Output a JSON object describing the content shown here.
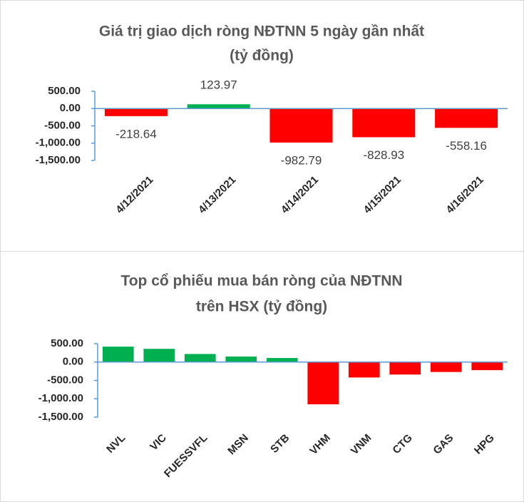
{
  "chart_data": [
    {
      "type": "bar",
      "title": [
        "Giá trị giao dịch ròng NĐTNN 5 ngày gần nhất",
        "(tỷ đồng)"
      ],
      "categories": [
        "4/12/2021",
        "4/13/2021",
        "4/14/2021",
        "4/15/2021",
        "4/16/2021"
      ],
      "values": [
        -218.64,
        123.97,
        -982.79,
        -828.93,
        -558.16
      ],
      "colors": [
        "#ff0000",
        "#00b050",
        "#ff0000",
        "#ff0000",
        "#ff0000"
      ],
      "data_labels": true,
      "ylim": [
        -1500,
        500
      ],
      "yticks": [
        {
          "value": 500,
          "label": "500.00"
        },
        {
          "value": 0,
          "label": "0.00"
        },
        {
          "value": -500,
          "label": "-500.00"
        },
        {
          "value": -1000,
          "label": "-1,000.00"
        },
        {
          "value": -1500,
          "label": "-1,500.00"
        }
      ]
    },
    {
      "type": "bar",
      "title": [
        "Top cổ phiếu mua bán ròng của NĐTNN",
        "trên HSX (tỷ đồng)"
      ],
      "categories": [
        "NVL",
        "VIC",
        "FUESSVFL",
        "MSN",
        "STB",
        "VHM",
        "VNM",
        "CTG",
        "GAS",
        "HPG"
      ],
      "values": [
        420,
        360,
        220,
        150,
        110,
        -1150,
        -420,
        -340,
        -270,
        -220
      ],
      "colors": [
        "#00b050",
        "#00b050",
        "#00b050",
        "#00b050",
        "#00b050",
        "#ff0000",
        "#ff0000",
        "#ff0000",
        "#ff0000",
        "#ff0000"
      ],
      "data_labels": false,
      "ylim": [
        -1500,
        500
      ],
      "yticks": [
        {
          "value": 500,
          "label": "500.00"
        },
        {
          "value": 0,
          "label": "0.00"
        },
        {
          "value": -500,
          "label": "-500.00"
        },
        {
          "value": -1000,
          "label": "-1,000.00"
        },
        {
          "value": -1500,
          "label": "-1,500.00"
        }
      ]
    }
  ]
}
